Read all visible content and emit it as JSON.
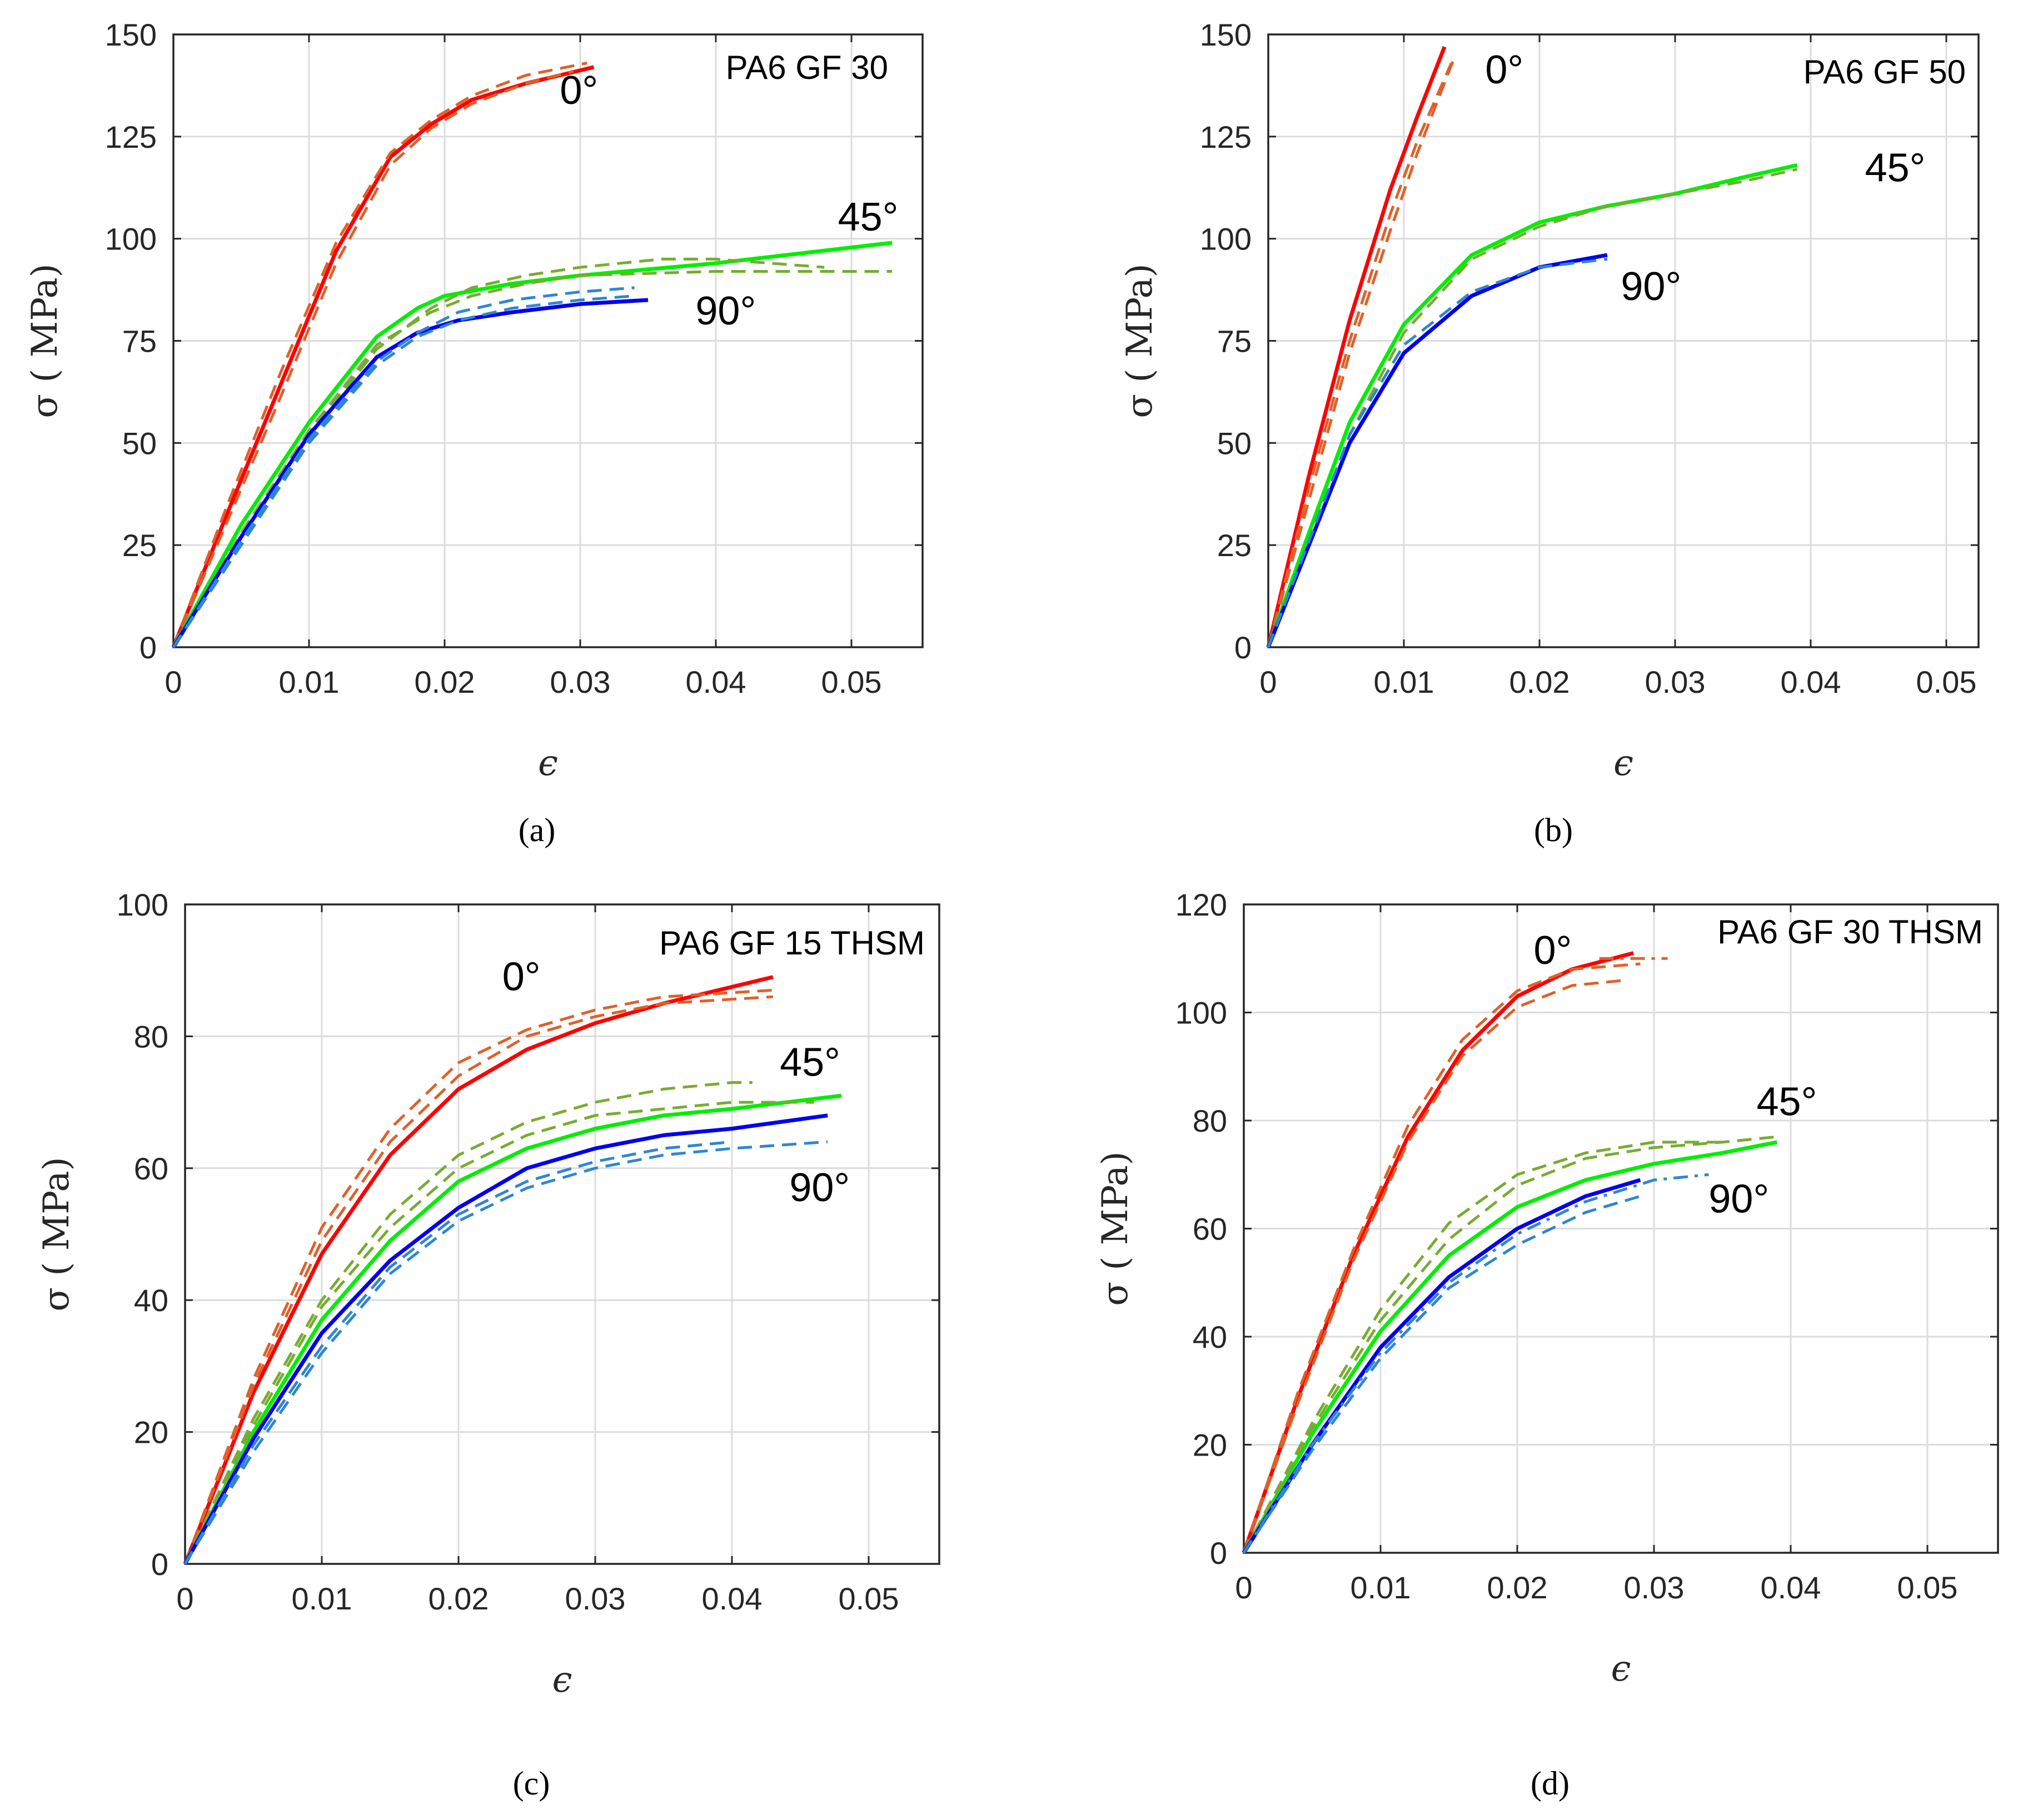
{
  "chart_data": [
    {
      "type": "line",
      "panel_label": "(a)",
      "annotation": "PA6 GF 30",
      "xlabel": "ϵ",
      "ylabel": "σ ( MPa)",
      "xlim": [
        0,
        0.055
      ],
      "ylim": [
        0,
        150
      ],
      "xticks": [
        "0",
        "0.01",
        "0.02",
        "0.03",
        "0.04",
        "0.05"
      ],
      "yticks": [
        "0",
        "25",
        "50",
        "75",
        "100",
        "125",
        "150"
      ],
      "grid": true,
      "colors": {
        "0°": "#ff0000",
        "45°": "#00ee00",
        "90°": "#0000ee",
        "0°_exp": "#e0602a",
        "45°_exp": "#77ac30",
        "90°_exp": "#2f86d0"
      },
      "series": [
        {
          "label": "0°",
          "style": "solid",
          "x": [
            0,
            0.004,
            0.008,
            0.012,
            0.016,
            0.019,
            0.022,
            0.026,
            0.031
          ],
          "y": [
            0,
            33,
            65,
            97,
            120,
            128,
            134,
            138,
            142
          ]
        },
        {
          "label": "0°",
          "style": "dashed",
          "x": [
            0,
            0.004,
            0.008,
            0.012,
            0.016,
            0.019,
            0.022,
            0.026,
            0.0305
          ],
          "y": [
            0,
            35,
            68,
            99,
            121,
            129,
            135,
            140,
            143
          ]
        },
        {
          "label": "0°",
          "style": "dashed",
          "x": [
            0,
            0.004,
            0.008,
            0.012,
            0.016,
            0.019,
            0.022,
            0.026,
            0.0295
          ],
          "y": [
            0,
            31,
            62,
            94,
            118,
            127,
            133,
            138,
            141
          ]
        },
        {
          "label": "45°",
          "style": "solid",
          "x": [
            0,
            0.005,
            0.01,
            0.015,
            0.018,
            0.02,
            0.025,
            0.03,
            0.04,
            0.053
          ],
          "y": [
            0,
            30,
            55,
            76,
            83,
            86,
            89,
            91,
            94,
            99
          ]
        },
        {
          "label": "45°",
          "style": "dashed",
          "x": [
            0,
            0.005,
            0.01,
            0.015,
            0.019,
            0.022,
            0.026,
            0.03,
            0.036,
            0.04,
            0.044,
            0.048
          ],
          "y": [
            0,
            27,
            52,
            73,
            83,
            88,
            91,
            93,
            95,
            95,
            94,
            93
          ]
        },
        {
          "label": "45°",
          "style": "dashed",
          "x": [
            0,
            0.005,
            0.01,
            0.015,
            0.019,
            0.022,
            0.026,
            0.03,
            0.04,
            0.053
          ],
          "y": [
            0,
            28,
            53,
            74,
            82,
            86,
            89,
            91,
            92,
            92
          ]
        },
        {
          "label": "90°",
          "style": "solid",
          "x": [
            0,
            0.005,
            0.01,
            0.015,
            0.018,
            0.021,
            0.025,
            0.03,
            0.035
          ],
          "y": [
            0,
            27,
            52,
            71,
            77,
            80,
            82,
            84,
            85
          ]
        },
        {
          "label": "90°",
          "style": "dashed",
          "x": [
            0,
            0.005,
            0.01,
            0.015,
            0.018,
            0.021,
            0.025,
            0.03,
            0.034
          ],
          "y": [
            0,
            26,
            51,
            70,
            77,
            82,
            85,
            87,
            88
          ]
        },
        {
          "label": "90°",
          "style": "dashed",
          "x": [
            0,
            0.005,
            0.01,
            0.015,
            0.018,
            0.021,
            0.025,
            0.03,
            0.034
          ],
          "y": [
            0,
            25,
            50,
            69,
            76,
            80,
            83,
            85,
            86
          ]
        }
      ],
      "annotations": [
        {
          "text": "0°",
          "x": 0.0285,
          "y": 133
        },
        {
          "text": "45°",
          "x": 0.049,
          "y": 102
        },
        {
          "text": "90°",
          "x": 0.0385,
          "y": 79
        }
      ]
    },
    {
      "type": "line",
      "panel_label": "(b)",
      "annotation": "PA6 GF 50",
      "xlabel": "ϵ",
      "ylabel": "σ ( MPa)",
      "xlim": [
        0,
        0.052
      ],
      "ylim": [
        0,
        150
      ],
      "xticks": [
        "0",
        "0.01",
        "0.02",
        "0.03",
        "0.04",
        "0.05"
      ],
      "yticks": [
        "0",
        "25",
        "50",
        "75",
        "100",
        "125",
        "150"
      ],
      "grid": true,
      "colors": {
        "0°": "#ff0000",
        "45°": "#00ee00",
        "90°": "#0000ee",
        "0°_exp": "#e0602a",
        "45°_exp": "#77ac30",
        "90°_exp": "#2f86d0"
      },
      "series": [
        {
          "label": "0°",
          "style": "solid",
          "x": [
            0,
            0.003,
            0.006,
            0.009,
            0.011,
            0.013
          ],
          "y": [
            0,
            42,
            80,
            112,
            130,
            147
          ]
        },
        {
          "label": "0°",
          "style": "dashed",
          "x": [
            0,
            0.003,
            0.006,
            0.009,
            0.011,
            0.0135
          ],
          "y": [
            0,
            39,
            75,
            106,
            124,
            143
          ]
        },
        {
          "label": "0°",
          "style": "dashed",
          "x": [
            0,
            0.003,
            0.006,
            0.009,
            0.011,
            0.0138
          ],
          "y": [
            0,
            36,
            72,
            102,
            121,
            145
          ]
        },
        {
          "label": "45°",
          "style": "solid",
          "x": [
            0,
            0.003,
            0.006,
            0.01,
            0.015,
            0.02,
            0.025,
            0.03,
            0.035,
            0.039
          ],
          "y": [
            0,
            28,
            55,
            79,
            96,
            104,
            108,
            111,
            115,
            118
          ]
        },
        {
          "label": "45°",
          "style": "dashed",
          "x": [
            0,
            0.003,
            0.006,
            0.01,
            0.015,
            0.02,
            0.025,
            0.03,
            0.035,
            0.039
          ],
          "y": [
            0,
            26,
            52,
            77,
            95,
            103,
            108,
            111,
            114,
            117
          ]
        },
        {
          "label": "90°",
          "style": "solid",
          "x": [
            0,
            0.003,
            0.006,
            0.01,
            0.015,
            0.02,
            0.025
          ],
          "y": [
            0,
            25,
            50,
            72,
            86,
            93,
            96
          ]
        },
        {
          "label": "90°",
          "style": "dashed",
          "x": [
            0,
            0.003,
            0.006,
            0.01,
            0.015,
            0.02,
            0.025
          ],
          "y": [
            0,
            26,
            52,
            74,
            87,
            93,
            95
          ]
        }
      ],
      "annotations": [
        {
          "text": "0°",
          "x": 0.016,
          "y": 138
        },
        {
          "text": "45°",
          "x": 0.044,
          "y": 114
        },
        {
          "text": "90°",
          "x": 0.026,
          "y": 85
        }
      ]
    },
    {
      "type": "line",
      "panel_label": "(c)",
      "annotation": "PA6 GF 15 THSM",
      "xlabel": "ϵ",
      "ylabel": "σ ( MPa)",
      "xlim": [
        0,
        0.055
      ],
      "ylim": [
        0,
        100
      ],
      "xticks": [
        "0",
        "0.01",
        "0.02",
        "0.03",
        "0.04",
        "0.05"
      ],
      "yticks": [
        "0",
        "20",
        "40",
        "60",
        "80",
        "100"
      ],
      "grid": true,
      "colors": {
        "0°": "#ff0000",
        "45°": "#00ee00",
        "90°": "#0000ee",
        "0°_exp": "#e0602a",
        "45°_exp": "#77ac30",
        "90°_exp": "#2f86d0"
      },
      "series": [
        {
          "label": "0°",
          "style": "solid",
          "x": [
            0,
            0.005,
            0.01,
            0.015,
            0.02,
            0.025,
            0.03,
            0.035,
            0.043
          ],
          "y": [
            0,
            26,
            47,
            62,
            72,
            78,
            82,
            85,
            89
          ]
        },
        {
          "label": "0°",
          "style": "dashed",
          "x": [
            0,
            0.005,
            0.01,
            0.015,
            0.02,
            0.025,
            0.03,
            0.035,
            0.043
          ],
          "y": [
            0,
            28,
            51,
            66,
            76,
            81,
            84,
            86,
            87
          ]
        },
        {
          "label": "0°",
          "style": "dashed",
          "x": [
            0,
            0.005,
            0.01,
            0.015,
            0.02,
            0.025,
            0.03,
            0.035,
            0.043
          ],
          "y": [
            0,
            27,
            49,
            64,
            74,
            80,
            83,
            85,
            86
          ]
        },
        {
          "label": "45°",
          "style": "solid",
          "x": [
            0,
            0.005,
            0.01,
            0.015,
            0.02,
            0.025,
            0.03,
            0.035,
            0.04,
            0.048
          ],
          "y": [
            0,
            20,
            37,
            49,
            58,
            63,
            66,
            68,
            69,
            71
          ]
        },
        {
          "label": "45°",
          "style": "dashed",
          "x": [
            0,
            0.005,
            0.01,
            0.015,
            0.02,
            0.025,
            0.03,
            0.035,
            0.04,
            0.0415
          ],
          "y": [
            0,
            22,
            40,
            53,
            62,
            67,
            70,
            72,
            73,
            73
          ]
        },
        {
          "label": "45°",
          "style": "dashed",
          "x": [
            0,
            0.005,
            0.01,
            0.015,
            0.02,
            0.025,
            0.03,
            0.035,
            0.04,
            0.046
          ],
          "y": [
            0,
            21,
            39,
            51,
            60,
            65,
            68,
            69,
            70,
            70
          ]
        },
        {
          "label": "90°",
          "style": "solid",
          "x": [
            0,
            0.005,
            0.01,
            0.015,
            0.02,
            0.025,
            0.03,
            0.035,
            0.04,
            0.047
          ],
          "y": [
            0,
            19,
            35,
            46,
            54,
            60,
            63,
            65,
            66,
            68
          ]
        },
        {
          "label": "90°",
          "style": "dashed",
          "x": [
            0,
            0.005,
            0.01,
            0.015,
            0.02,
            0.025,
            0.03,
            0.035,
            0.04,
            0.047
          ],
          "y": [
            0,
            17,
            32,
            44,
            52,
            57,
            60,
            62,
            63,
            64
          ]
        },
        {
          "label": "90°",
          "style": "dashed",
          "x": [
            0,
            0.005,
            0.01,
            0.015,
            0.02,
            0.025,
            0.03,
            0.035,
            0.04
          ],
          "y": [
            0,
            18,
            33,
            45,
            53,
            58,
            61,
            63,
            64
          ]
        }
      ],
      "annotations": [
        {
          "text": "0°",
          "x": 0.0232,
          "y": 87
        },
        {
          "text": "45°",
          "x": 0.0435,
          "y": 74
        },
        {
          "text": "90°",
          "x": 0.0442,
          "y": 55
        }
      ]
    },
    {
      "type": "line",
      "panel_label": "(d)",
      "annotation": "PA6 GF 30 THSM",
      "xlabel": "ϵ",
      "ylabel": "σ ( MPa)",
      "xlim": [
        0,
        0.055
      ],
      "ylim": [
        0,
        120
      ],
      "xticks": [
        "0",
        "0.01",
        "0.02",
        "0.03",
        "0.04",
        "0.05"
      ],
      "yticks": [
        "0",
        "20",
        "40",
        "60",
        "80",
        "100",
        "120"
      ],
      "grid": true,
      "colors": {
        "0°": "#ff0000",
        "45°": "#00ee00",
        "90°": "#0000ee",
        "0°_exp": "#e0602a",
        "45°_exp": "#77ac30",
        "90°_exp": "#2f86d0"
      },
      "series": [
        {
          "label": "0°",
          "style": "solid",
          "x": [
            0,
            0.004,
            0.008,
            0.012,
            0.016,
            0.02,
            0.024,
            0.0285
          ],
          "y": [
            0,
            29,
            55,
            77,
            93,
            103,
            108,
            111
          ]
        },
        {
          "label": "0°",
          "style": "dashed",
          "x": [
            0,
            0.004,
            0.008,
            0.012,
            0.016,
            0.02,
            0.024,
            0.028
          ],
          "y": [
            0,
            28,
            54,
            76,
            92,
            101,
            105,
            106
          ]
        },
        {
          "label": "0°",
          "style": "dashed",
          "x": [
            0,
            0.004,
            0.008,
            0.012,
            0.016,
            0.02,
            0.024,
            0.029
          ],
          "y": [
            0,
            30,
            56,
            79,
            95,
            104,
            108,
            109
          ]
        },
        {
          "label": "0°",
          "style": "dashdot",
          "x": [
            0.026,
            0.029,
            0.031
          ],
          "y": [
            110,
            110,
            110
          ]
        },
        {
          "label": "45°",
          "style": "solid",
          "x": [
            0,
            0.005,
            0.01,
            0.015,
            0.02,
            0.025,
            0.03,
            0.035,
            0.039
          ],
          "y": [
            0,
            22,
            41,
            55,
            64,
            69,
            72,
            74,
            76
          ]
        },
        {
          "label": "45°",
          "style": "dashed",
          "x": [
            0,
            0.005,
            0.01,
            0.015,
            0.02,
            0.025,
            0.03,
            0.035,
            0.039
          ],
          "y": [
            0,
            23,
            43,
            58,
            68,
            73,
            75,
            76,
            77
          ]
        },
        {
          "label": "45°",
          "style": "dashed",
          "x": [
            0,
            0.005,
            0.01,
            0.015,
            0.02,
            0.025,
            0.03,
            0.035
          ],
          "y": [
            0,
            24,
            45,
            61,
            70,
            74,
            76,
            76
          ]
        },
        {
          "label": "90°",
          "style": "solid",
          "x": [
            0,
            0.005,
            0.01,
            0.015,
            0.02,
            0.025,
            0.029
          ],
          "y": [
            0,
            20,
            38,
            51,
            60,
            66,
            69
          ]
        },
        {
          "label": "90°",
          "style": "dashed",
          "x": [
            0,
            0.005,
            0.01,
            0.015,
            0.02,
            0.025,
            0.029
          ],
          "y": [
            0,
            19,
            36,
            49,
            57,
            63,
            66
          ]
        },
        {
          "label": "90°",
          "style": "dashdot",
          "x": [
            0,
            0.005,
            0.01,
            0.015,
            0.02,
            0.025,
            0.03,
            0.034
          ],
          "y": [
            0,
            20,
            37,
            50,
            59,
            65,
            69,
            70
          ]
        }
      ],
      "annotations": [
        {
          "text": "0°",
          "x": 0.0212,
          "y": 109
        },
        {
          "text": "45°",
          "x": 0.0375,
          "y": 81
        },
        {
          "text": "90°",
          "x": 0.034,
          "y": 63
        }
      ]
    }
  ]
}
